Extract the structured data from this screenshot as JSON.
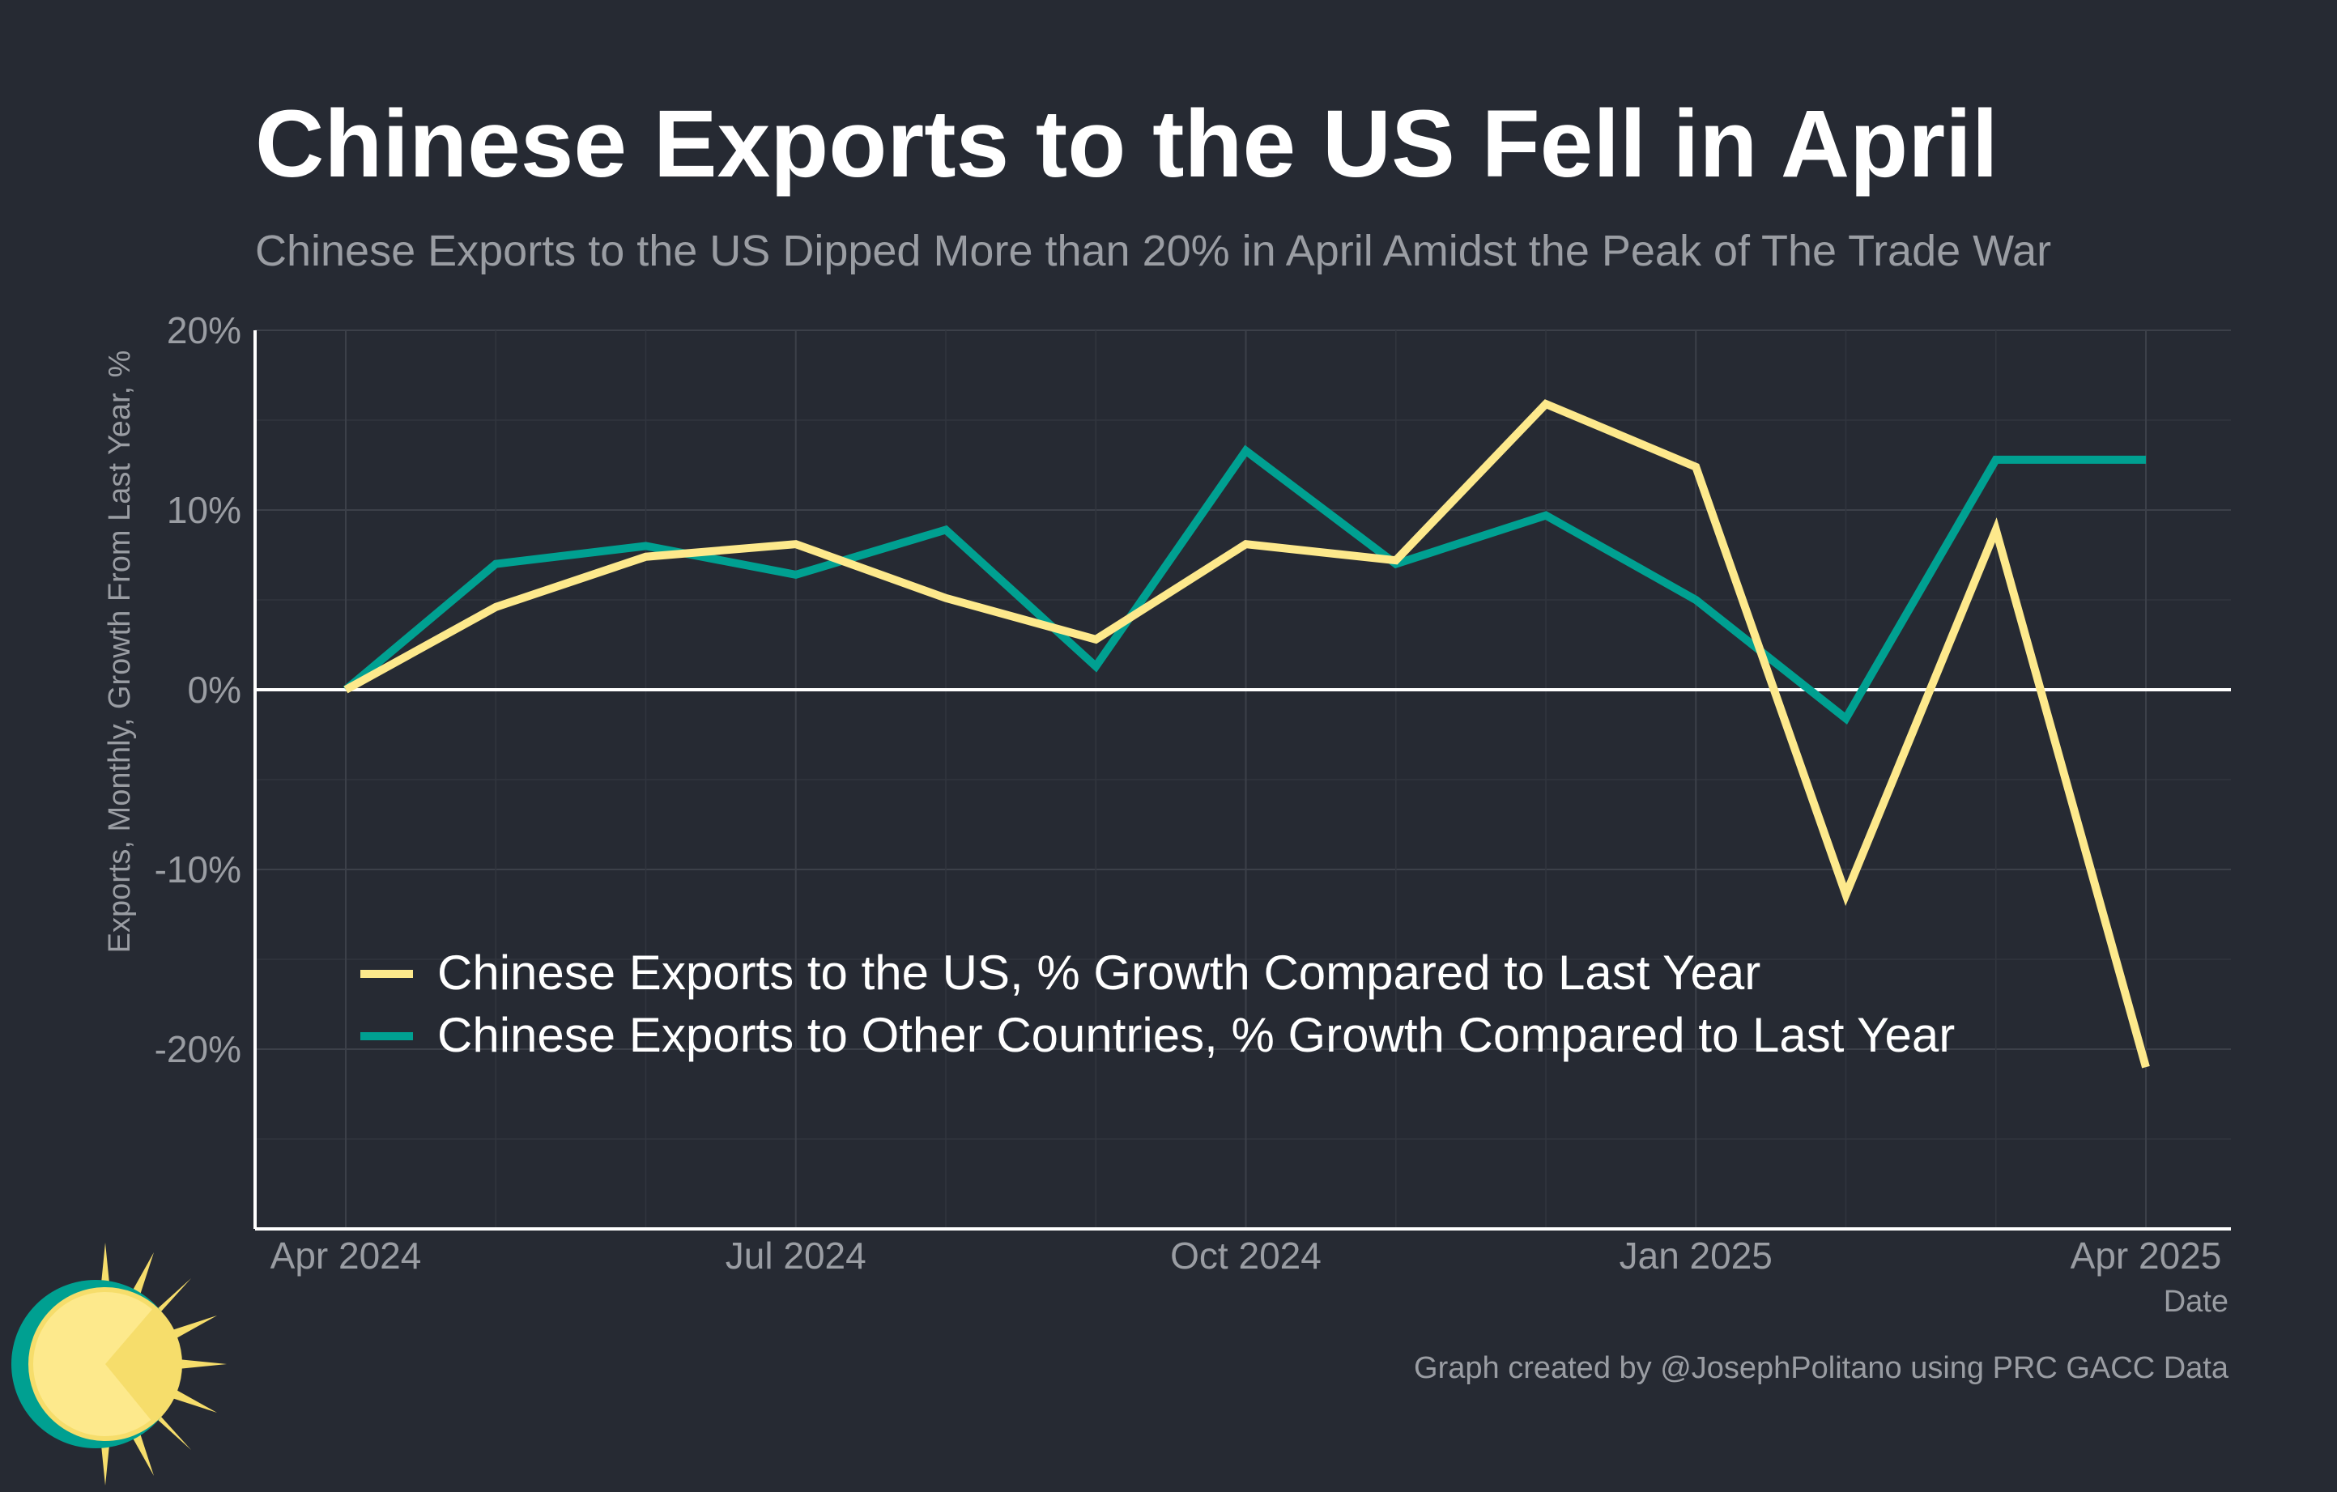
{
  "colors": {
    "background": "#262a33",
    "us_line": "#fde98c",
    "other_line": "#00a091",
    "title": "#ffffff",
    "subtitle": "#9a9da3",
    "axis_text": "#9a9da3",
    "grid": "#3c4049",
    "zero_line": "#ffffff"
  },
  "chart_data": {
    "type": "line",
    "title": "Chinese Exports to the US Fell in April",
    "subtitle": "Chinese Exports to the US Dipped More than 20% in April Amidst the Peak of The Trade War",
    "xlabel": "Date",
    "ylabel": "Exports, Monthly, Growth From Last Year, %",
    "x": [
      "2024-04",
      "2024-05",
      "2024-06",
      "2024-07",
      "2024-08",
      "2024-09",
      "2024-10",
      "2024-11",
      "2024-12",
      "2025-01",
      "2025-02",
      "2025-03",
      "2025-04"
    ],
    "x_ticks": [
      "Apr 2024",
      "Jul 2024",
      "Oct 2024",
      "Jan 2025",
      "Apr 2025"
    ],
    "y_ticks": [
      "20%",
      "10%",
      "0%",
      "-10%",
      "-20%"
    ],
    "ylim": [
      -30,
      20
    ],
    "grid": true,
    "legend_position": "bottom-left",
    "series": [
      {
        "name": "Chinese Exports to the US, % Growth Compared to Last Year",
        "color": "#fde98c",
        "values": [
          0,
          4.6,
          7.4,
          8.1,
          5.1,
          2.8,
          8.1,
          7.2,
          15.9,
          12.4,
          -11.4,
          8.9,
          -21.0
        ]
      },
      {
        "name": "Chinese Exports to Other Countries, % Growth Compared to Last Year",
        "color": "#00a091",
        "values": [
          0,
          7.0,
          8.0,
          6.4,
          8.9,
          1.3,
          13.3,
          7.0,
          9.7,
          5.0,
          -1.6,
          12.8,
          12.8
        ]
      }
    ]
  },
  "credit": "Graph created by @JosephPolitano using PRC GACC Data",
  "logo": {
    "icon": "sun-logo-icon"
  }
}
